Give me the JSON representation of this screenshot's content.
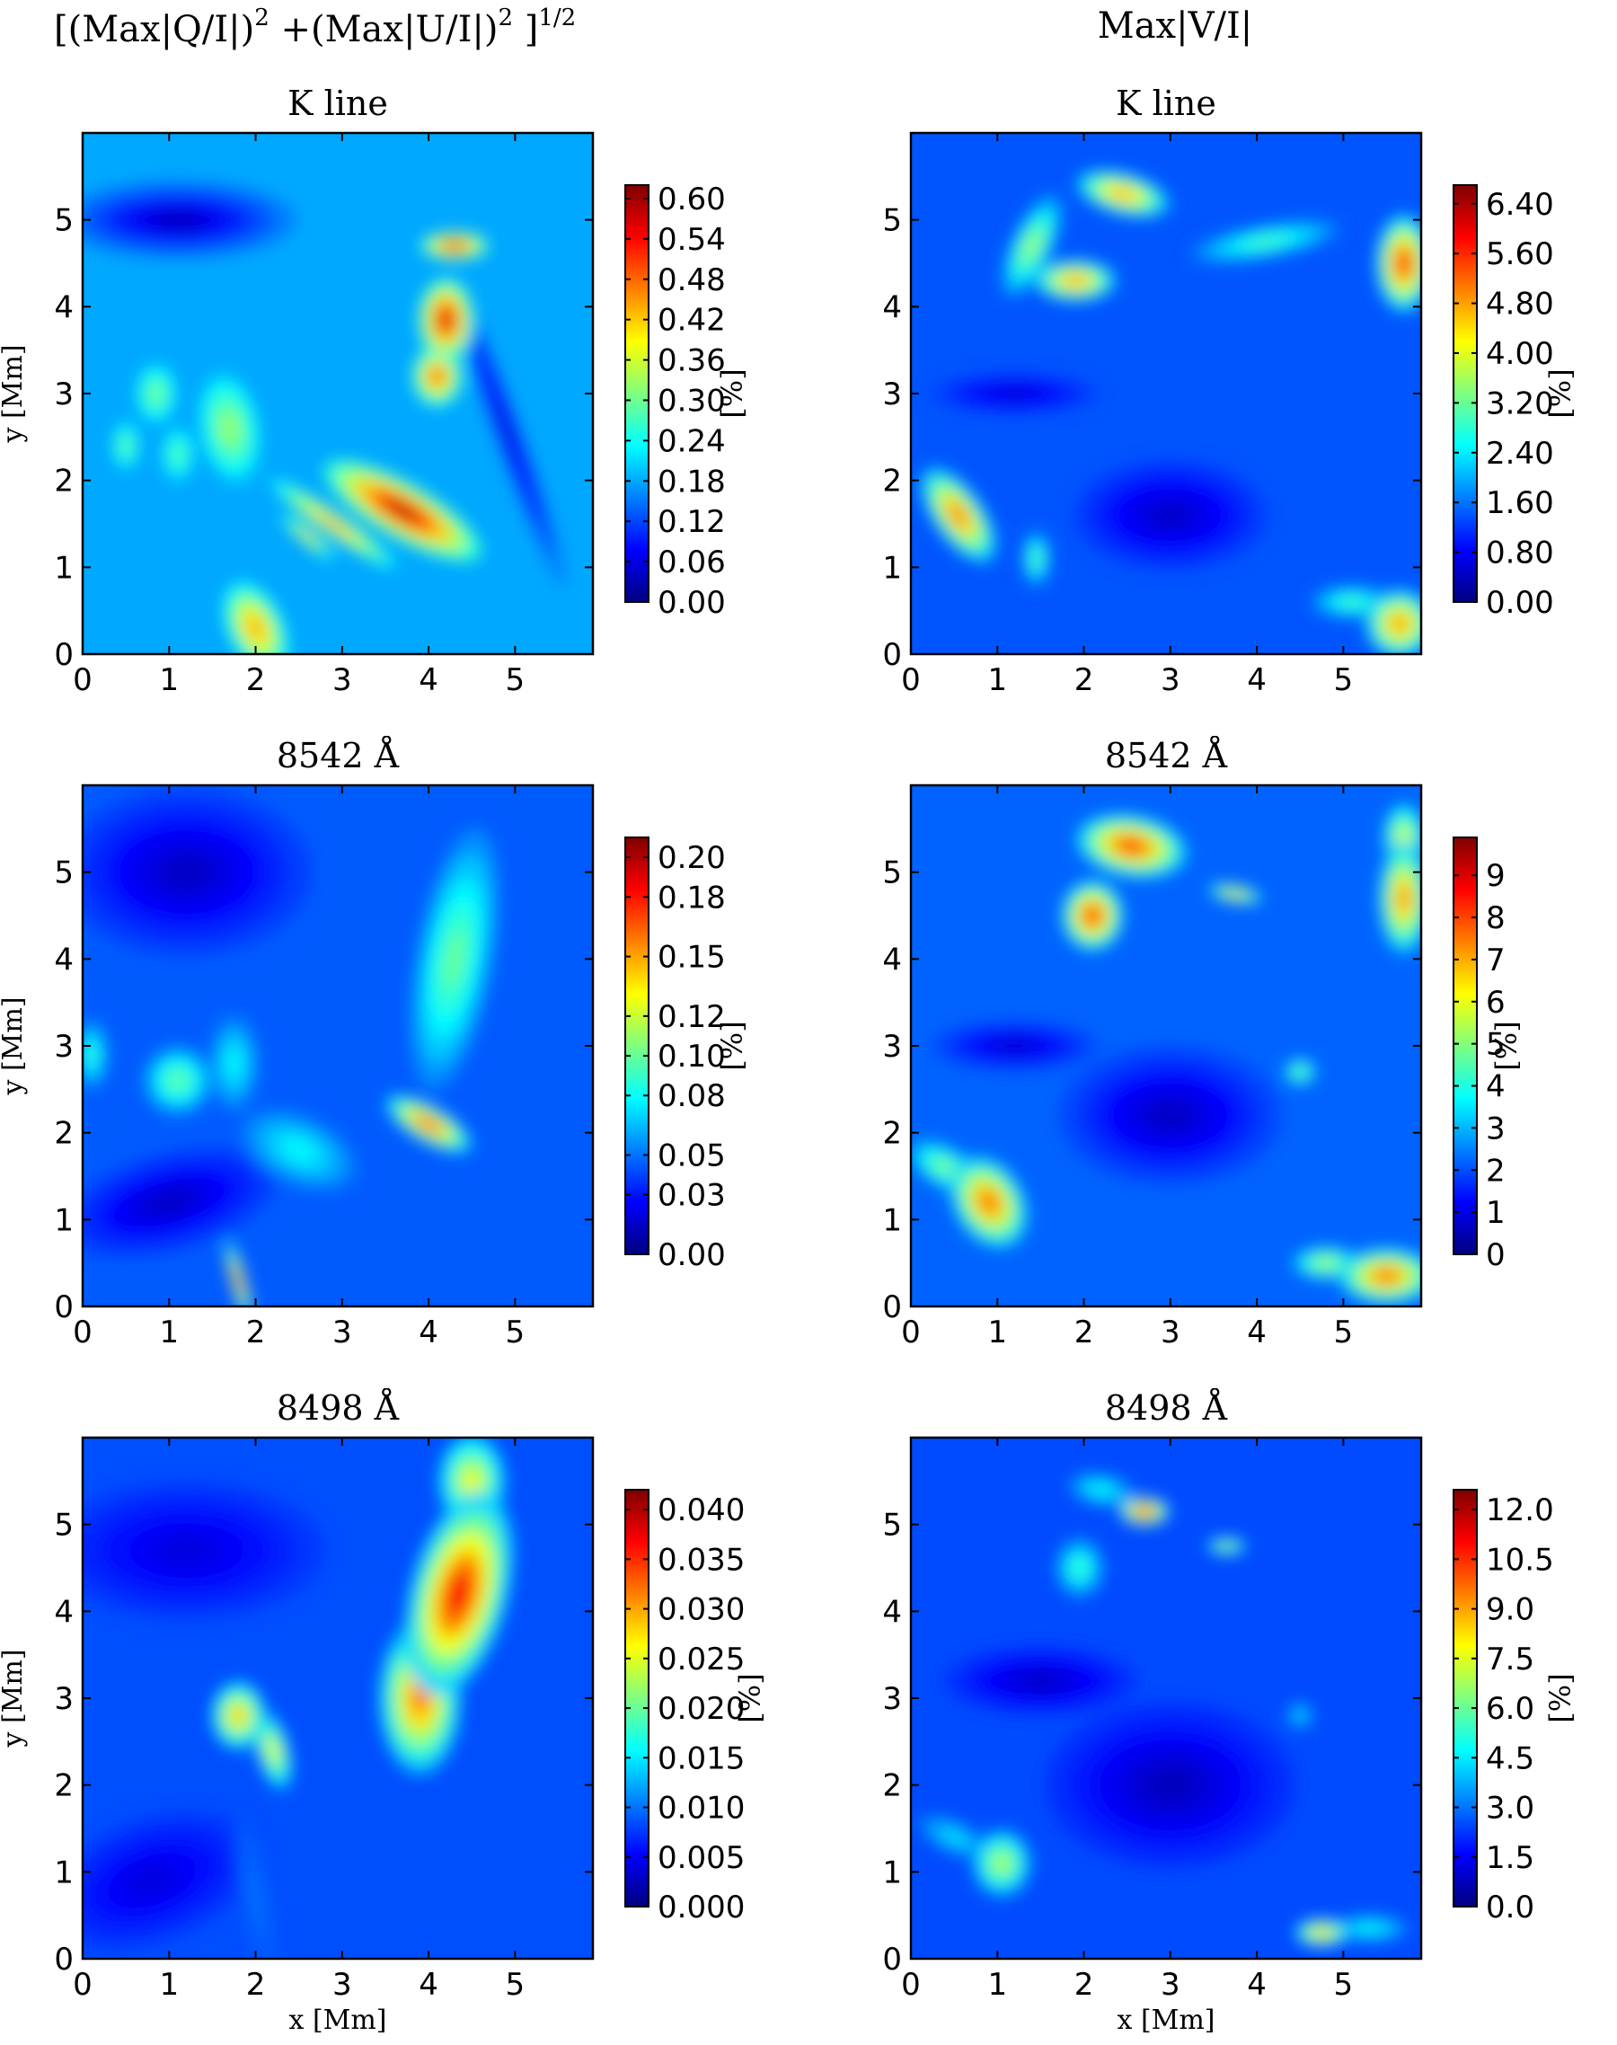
{
  "figure": {
    "columns": [
      {
        "title_parts": [
          "[(Max|Q/I|)",
          "2",
          " +(Max|U/I|)",
          "2",
          " ]",
          "1/2"
        ]
      },
      {
        "title_parts": [
          "Max|V/I|"
        ]
      }
    ],
    "x_label": "x [Mm]",
    "y_label": "y [Mm]",
    "colorbar_unit": "[%]",
    "colormap": "jet",
    "colormap_stops": [
      "#00007f",
      "#0000ff",
      "#007fff",
      "#00ffff",
      "#7fff7f",
      "#ffff00",
      "#ff7f00",
      "#ff0000",
      "#7f0000"
    ]
  },
  "chart_data": [
    {
      "type": "heatmap",
      "panel": "Q/U polarization, K line",
      "title": "K line",
      "xlabel": "",
      "ylabel": "y [Mm]",
      "xlim": [
        0,
        5.9
      ],
      "ylim": [
        0,
        6.0
      ],
      "x_ticks": [
        "0",
        "1",
        "2",
        "3",
        "4",
        "5"
      ],
      "y_ticks": [
        "0",
        "1",
        "2",
        "3",
        "4",
        "5"
      ],
      "colorbar": {
        "label": "[%]",
        "min": 0.0,
        "max": 0.62,
        "ticks": [
          "0.00",
          "0.06",
          "0.12",
          "0.18",
          "0.24",
          "0.30",
          "0.36",
          "0.42",
          "0.48",
          "0.54",
          "0.60"
        ]
      },
      "background_level": 0.18,
      "features": [
        {
          "x": 4.3,
          "y": 4.7,
          "rx": 0.25,
          "ry": 0.1,
          "angle": 0,
          "value": 0.55
        },
        {
          "x": 4.2,
          "y": 3.85,
          "rx": 0.2,
          "ry": 0.3,
          "angle": 0,
          "value": 0.57
        },
        {
          "x": 4.1,
          "y": 3.2,
          "rx": 0.18,
          "ry": 0.22,
          "angle": 0,
          "value": 0.5
        },
        {
          "x": 3.7,
          "y": 1.65,
          "rx": 0.65,
          "ry": 0.2,
          "angle": -30,
          "value": 0.58
        },
        {
          "x": 2.9,
          "y": 1.5,
          "rx": 0.55,
          "ry": 0.08,
          "angle": -35,
          "value": 0.46
        },
        {
          "x": 2.6,
          "y": 1.35,
          "rx": 0.25,
          "ry": 0.05,
          "angle": -40,
          "value": 0.42
        },
        {
          "x": 2.0,
          "y": 0.3,
          "rx": 0.2,
          "ry": 0.35,
          "angle": 25,
          "value": 0.45
        },
        {
          "x": 1.7,
          "y": 2.6,
          "rx": 0.22,
          "ry": 0.4,
          "angle": 10,
          "value": 0.33
        },
        {
          "x": 0.85,
          "y": 3.0,
          "rx": 0.15,
          "ry": 0.22,
          "angle": 0,
          "value": 0.31
        },
        {
          "x": 0.5,
          "y": 2.4,
          "rx": 0.1,
          "ry": 0.18,
          "angle": 0,
          "value": 0.3
        },
        {
          "x": 1.1,
          "y": 2.3,
          "rx": 0.12,
          "ry": 0.2,
          "angle": 0,
          "value": 0.29
        },
        {
          "x": 1.1,
          "y": 5.0,
          "rx": 0.85,
          "ry": 0.28,
          "angle": 0,
          "value": 0.04
        },
        {
          "x": 4.9,
          "y": 2.6,
          "rx": 0.1,
          "ry": 1.2,
          "angle": 20,
          "value": 0.05
        }
      ]
    },
    {
      "type": "heatmap",
      "panel": "V polarization, K line",
      "title": "K line",
      "xlabel": "",
      "ylabel": "",
      "xlim": [
        0,
        5.9
      ],
      "ylim": [
        0,
        6.0
      ],
      "x_ticks": [
        "0",
        "1",
        "2",
        "3",
        "4",
        "5"
      ],
      "y_ticks": [
        "0",
        "1",
        "2",
        "3",
        "4",
        "5"
      ],
      "colorbar": {
        "label": "[%]",
        "min": 0.0,
        "max": 6.7,
        "ticks": [
          "0.00",
          "0.80",
          "1.60",
          "2.40",
          "3.20",
          "4.00",
          "4.80",
          "5.60",
          "6.40"
        ]
      },
      "background_level": 1.4,
      "features": [
        {
          "x": 2.45,
          "y": 5.3,
          "rx": 0.35,
          "ry": 0.15,
          "angle": -15,
          "value": 4.9
        },
        {
          "x": 1.9,
          "y": 4.3,
          "rx": 0.3,
          "ry": 0.15,
          "angle": 0,
          "value": 5.0
        },
        {
          "x": 1.4,
          "y": 4.7,
          "rx": 0.15,
          "ry": 0.4,
          "angle": -25,
          "value": 3.6
        },
        {
          "x": 4.1,
          "y": 4.75,
          "rx": 0.55,
          "ry": 0.12,
          "angle": 10,
          "value": 3.0
        },
        {
          "x": 5.7,
          "y": 4.5,
          "rx": 0.2,
          "ry": 0.35,
          "angle": 0,
          "value": 5.8
        },
        {
          "x": 0.55,
          "y": 1.6,
          "rx": 0.18,
          "ry": 0.4,
          "angle": 35,
          "value": 5.2
        },
        {
          "x": 1.45,
          "y": 1.1,
          "rx": 0.1,
          "ry": 0.2,
          "angle": 0,
          "value": 3.2
        },
        {
          "x": 5.65,
          "y": 0.35,
          "rx": 0.25,
          "ry": 0.25,
          "angle": 0,
          "value": 5.0
        },
        {
          "x": 5.1,
          "y": 0.6,
          "rx": 0.3,
          "ry": 0.12,
          "angle": 0,
          "value": 3.0
        },
        {
          "x": 3.0,
          "y": 1.6,
          "rx": 0.7,
          "ry": 0.4,
          "angle": 0,
          "value": 0.5
        },
        {
          "x": 1.2,
          "y": 3.0,
          "rx": 0.6,
          "ry": 0.15,
          "angle": 0,
          "value": 0.6
        }
      ]
    },
    {
      "type": "heatmap",
      "panel": "Q/U polarization, 8542",
      "title": "8542 Å",
      "xlabel": "",
      "ylabel": "y [Mm]",
      "xlim": [
        0,
        5.9
      ],
      "ylim": [
        0,
        6.0
      ],
      "x_ticks": [
        "0",
        "1",
        "2",
        "3",
        "4",
        "5"
      ],
      "y_ticks": [
        "0",
        "1",
        "2",
        "3",
        "4",
        "5"
      ],
      "colorbar": {
        "label": "[%]",
        "min": 0.0,
        "max": 0.21,
        "ticks": [
          "0.00",
          "0.03",
          "0.05",
          "0.08",
          "0.10",
          "0.12",
          "0.15",
          "0.18",
          "0.20"
        ]
      },
      "background_level": 0.045,
      "features": [
        {
          "x": 4.3,
          "y": 4.0,
          "rx": 0.28,
          "ry": 0.95,
          "angle": -10,
          "value": 0.1
        },
        {
          "x": 4.0,
          "y": 2.1,
          "rx": 0.35,
          "ry": 0.13,
          "angle": -30,
          "value": 0.17
        },
        {
          "x": 1.8,
          "y": 0.3,
          "rx": 0.05,
          "ry": 0.3,
          "angle": 15,
          "value": 0.18
        },
        {
          "x": 1.1,
          "y": 2.6,
          "rx": 0.25,
          "ry": 0.25,
          "angle": 0,
          "value": 0.1
        },
        {
          "x": 1.75,
          "y": 2.8,
          "rx": 0.18,
          "ry": 0.35,
          "angle": 0,
          "value": 0.08
        },
        {
          "x": 0.1,
          "y": 2.9,
          "rx": 0.12,
          "ry": 0.25,
          "angle": 0,
          "value": 0.09
        },
        {
          "x": 2.5,
          "y": 1.8,
          "rx": 0.45,
          "ry": 0.25,
          "angle": -25,
          "value": 0.08
        },
        {
          "x": 1.2,
          "y": 5.0,
          "rx": 0.9,
          "ry": 0.6,
          "angle": 0,
          "value": 0.015
        },
        {
          "x": 1.0,
          "y": 1.2,
          "rx": 0.8,
          "ry": 0.35,
          "angle": 15,
          "value": 0.015
        }
      ]
    },
    {
      "type": "heatmap",
      "panel": "V polarization, 8542",
      "title": "8542 Å",
      "xlabel": "",
      "ylabel": "",
      "xlim": [
        0,
        5.9
      ],
      "ylim": [
        0,
        6.0
      ],
      "x_ticks": [
        "0",
        "1",
        "2",
        "3",
        "4",
        "5"
      ],
      "y_ticks": [
        "0",
        "1",
        "2",
        "3",
        "4",
        "5"
      ],
      "colorbar": {
        "label": "[%]",
        "min": 0.0,
        "max": 9.9,
        "ticks": [
          "0",
          "1",
          "2",
          "3",
          "4",
          "5",
          "6",
          "7",
          "8",
          "9"
        ]
      },
      "background_level": 2.2,
      "features": [
        {
          "x": 2.55,
          "y": 5.3,
          "rx": 0.4,
          "ry": 0.22,
          "angle": -10,
          "value": 8.3
        },
        {
          "x": 2.1,
          "y": 4.5,
          "rx": 0.22,
          "ry": 0.25,
          "angle": 0,
          "value": 8.5
        },
        {
          "x": 3.75,
          "y": 4.75,
          "rx": 0.2,
          "ry": 0.06,
          "angle": -10,
          "value": 7.0
        },
        {
          "x": 5.7,
          "y": 4.7,
          "rx": 0.18,
          "ry": 0.4,
          "angle": 0,
          "value": 7.5
        },
        {
          "x": 5.7,
          "y": 5.4,
          "rx": 0.15,
          "ry": 0.25,
          "angle": 0,
          "value": 6.0
        },
        {
          "x": 0.9,
          "y": 1.2,
          "rx": 0.25,
          "ry": 0.35,
          "angle": 30,
          "value": 7.8
        },
        {
          "x": 0.4,
          "y": 1.6,
          "rx": 0.3,
          "ry": 0.15,
          "angle": -30,
          "value": 5.0
        },
        {
          "x": 5.5,
          "y": 0.35,
          "rx": 0.35,
          "ry": 0.2,
          "angle": 0,
          "value": 7.8
        },
        {
          "x": 4.8,
          "y": 0.5,
          "rx": 0.25,
          "ry": 0.12,
          "angle": 0,
          "value": 5.5
        },
        {
          "x": 4.5,
          "y": 2.7,
          "rx": 0.12,
          "ry": 0.1,
          "angle": 0,
          "value": 5.0
        },
        {
          "x": 3.0,
          "y": 2.2,
          "rx": 0.8,
          "ry": 0.5,
          "angle": 0,
          "value": 0.7
        },
        {
          "x": 1.2,
          "y": 3.0,
          "rx": 0.6,
          "ry": 0.18,
          "angle": 0,
          "value": 0.8
        }
      ]
    },
    {
      "type": "heatmap",
      "panel": "Q/U polarization, 8498",
      "title": "8498 Å",
      "xlabel": "x [Mm]",
      "ylabel": "y [Mm]",
      "xlim": [
        0,
        5.9
      ],
      "ylim": [
        0,
        6.0
      ],
      "x_ticks": [
        "0",
        "1",
        "2",
        "3",
        "4",
        "5"
      ],
      "y_ticks": [
        "0",
        "1",
        "2",
        "3",
        "4",
        "5"
      ],
      "colorbar": {
        "label": "[%]",
        "min": 0.0,
        "max": 0.042,
        "ticks": [
          "0.000",
          "0.005",
          "0.010",
          "0.015",
          "0.020",
          "0.025",
          "0.030",
          "0.035",
          "0.040"
        ]
      },
      "background_level": 0.0085,
      "features": [
        {
          "x": 4.35,
          "y": 4.2,
          "rx": 0.35,
          "ry": 0.75,
          "angle": -15,
          "value": 0.037
        },
        {
          "x": 3.9,
          "y": 3.0,
          "rx": 0.3,
          "ry": 0.55,
          "angle": 0,
          "value": 0.032
        },
        {
          "x": 4.5,
          "y": 5.5,
          "rx": 0.25,
          "ry": 0.35,
          "angle": 0,
          "value": 0.026
        },
        {
          "x": 1.8,
          "y": 2.8,
          "rx": 0.2,
          "ry": 0.25,
          "angle": 0,
          "value": 0.029
        },
        {
          "x": 2.2,
          "y": 2.4,
          "rx": 0.12,
          "ry": 0.3,
          "angle": 15,
          "value": 0.026
        },
        {
          "x": 2.0,
          "y": 0.7,
          "rx": 0.1,
          "ry": 0.6,
          "angle": 10,
          "value": 0.01
        },
        {
          "x": 1.2,
          "y": 4.7,
          "rx": 1.0,
          "ry": 0.5,
          "angle": 0,
          "value": 0.004
        },
        {
          "x": 0.8,
          "y": 0.9,
          "rx": 0.8,
          "ry": 0.45,
          "angle": 20,
          "value": 0.004
        }
      ]
    },
    {
      "type": "heatmap",
      "panel": "V polarization, 8498",
      "title": "8498 Å",
      "xlabel": "x [Mm]",
      "ylabel": "",
      "xlim": [
        0,
        5.9
      ],
      "ylim": [
        0,
        6.0
      ],
      "x_ticks": [
        "0",
        "1",
        "2",
        "3",
        "4",
        "5"
      ],
      "y_ticks": [
        "0",
        "1",
        "2",
        "3",
        "4",
        "5"
      ],
      "colorbar": {
        "label": "[%]",
        "min": 0.0,
        "max": 12.6,
        "ticks": [
          "0.0",
          "1.5",
          "3.0",
          "4.5",
          "6.0",
          "7.5",
          "9.0",
          "10.5",
          "12.0"
        ]
      },
      "background_level": 2.5,
      "features": [
        {
          "x": 2.7,
          "y": 5.15,
          "rx": 0.18,
          "ry": 0.1,
          "angle": 0,
          "value": 11.5
        },
        {
          "x": 2.2,
          "y": 5.4,
          "rx": 0.25,
          "ry": 0.12,
          "angle": -10,
          "value": 5.0
        },
        {
          "x": 1.95,
          "y": 4.5,
          "rx": 0.18,
          "ry": 0.22,
          "angle": 0,
          "value": 5.5
        },
        {
          "x": 3.65,
          "y": 4.75,
          "rx": 0.15,
          "ry": 0.06,
          "angle": 0,
          "value": 7.5
        },
        {
          "x": 1.05,
          "y": 1.1,
          "rx": 0.22,
          "ry": 0.25,
          "angle": 0,
          "value": 7.0
        },
        {
          "x": 0.5,
          "y": 1.4,
          "rx": 0.3,
          "ry": 0.12,
          "angle": -25,
          "value": 4.5
        },
        {
          "x": 4.75,
          "y": 0.3,
          "rx": 0.2,
          "ry": 0.1,
          "angle": 0,
          "value": 9.0
        },
        {
          "x": 5.3,
          "y": 0.35,
          "rx": 0.3,
          "ry": 0.1,
          "angle": 0,
          "value": 5.0
        },
        {
          "x": 4.5,
          "y": 2.8,
          "rx": 0.1,
          "ry": 0.1,
          "angle": 0,
          "value": 4.5
        },
        {
          "x": 3.0,
          "y": 2.0,
          "rx": 0.9,
          "ry": 0.6,
          "angle": 0,
          "value": 0.8
        },
        {
          "x": 1.5,
          "y": 3.2,
          "rx": 0.7,
          "ry": 0.25,
          "angle": 0,
          "value": 0.9
        }
      ]
    }
  ]
}
